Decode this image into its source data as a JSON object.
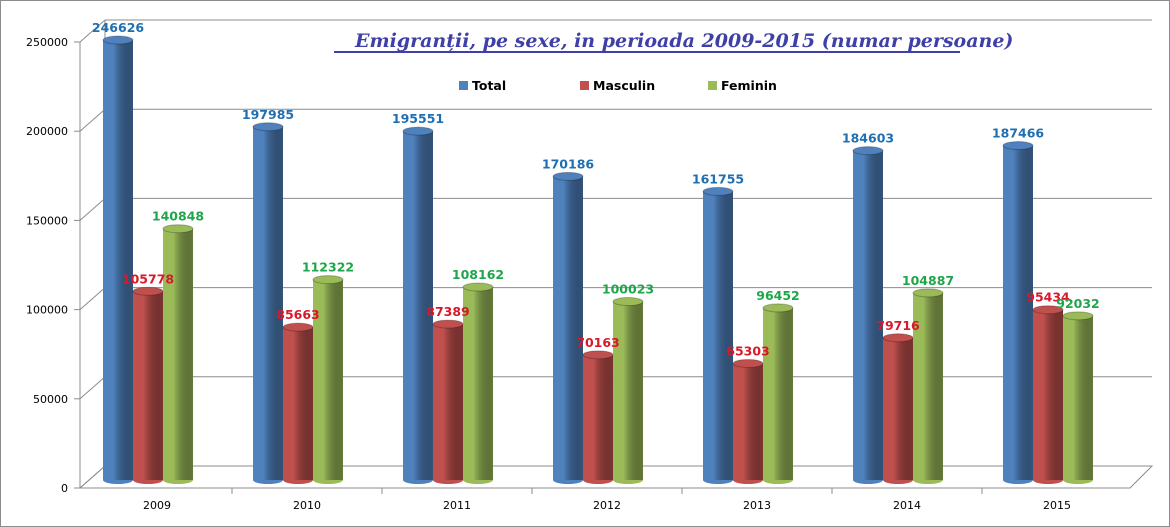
{
  "chart_data": {
    "type": "bar",
    "title": "Emigranții, pe sexe, in perioada 2009-2015 (numar persoane)",
    "xlabel": "",
    "ylabel": "",
    "categories": [
      "2009",
      "2010",
      "2011",
      "2012",
      "2013",
      "2014",
      "2015"
    ],
    "series": [
      {
        "name": "Total",
        "color": "#4f81bd",
        "label_color": "#1f6fb2",
        "values": [
          246626,
          197985,
          195551,
          170186,
          161755,
          184603,
          187466
        ]
      },
      {
        "name": "Masculin",
        "color": "#c0504d",
        "label_color": "#d7192a",
        "values": [
          105778,
          85663,
          87389,
          70163,
          65303,
          79716,
          95434
        ]
      },
      {
        "name": "Feminin",
        "color": "#9bbb59",
        "label_color": "#1fa64a",
        "values": [
          140848,
          112322,
          108162,
          100023,
          96452,
          104887,
          92032
        ]
      }
    ],
    "ylim": [
      0,
      250000
    ],
    "yticks": [
      "0",
      "50000",
      "100000",
      "150000",
      "200000",
      "250000"
    ],
    "grid": true,
    "legend_position": "top-center"
  }
}
